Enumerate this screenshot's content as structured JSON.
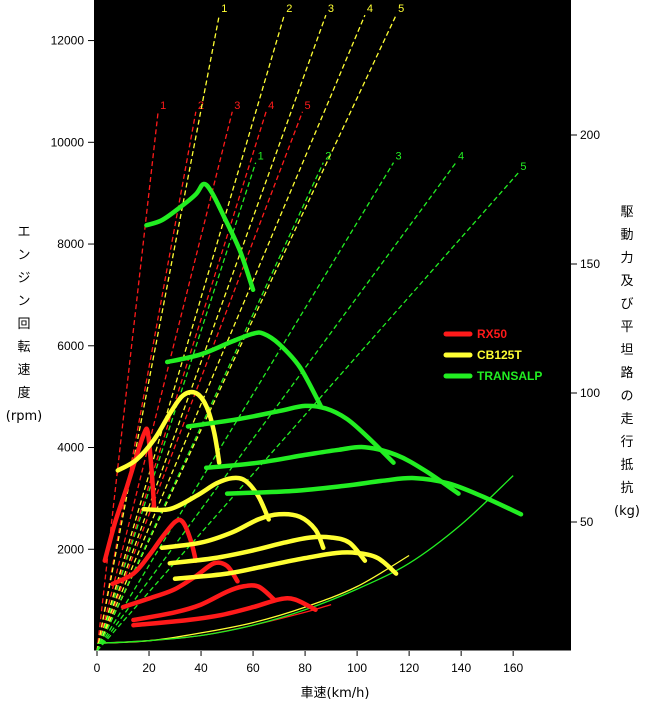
{
  "chart_data": {
    "type": "line",
    "xlabel": "車速(km/h)",
    "ylabel_left": [
      "エ",
      "ン",
      "ジ",
      "ン",
      "回",
      "転",
      "速",
      "度",
      "(rpm)"
    ],
    "ylabel_right": [
      "駆",
      "動",
      "力",
      "及",
      "び",
      "平",
      "坦",
      "路",
      "の",
      "走",
      "行",
      "抵",
      "抗",
      "(kg)"
    ],
    "xlim": [
      0,
      180
    ],
    "ylim_left": [
      0,
      12600
    ],
    "ylim_right": [
      0,
      252
    ],
    "x_ticks": [
      0,
      20,
      40,
      60,
      80,
      100,
      120,
      140,
      160
    ],
    "y_ticks_left": [
      2000,
      4000,
      6000,
      8000,
      10000,
      12000
    ],
    "y_ticks_right": [
      50,
      100,
      150,
      200
    ],
    "legend": [
      {
        "name": "RX50",
        "color": "#ff1a1a"
      },
      {
        "name": "CB125T",
        "color": "#ffff33"
      },
      {
        "name": "TRANSALP",
        "color": "#22ee22"
      }
    ],
    "gear_lines": [
      {
        "model": "RX50",
        "color": "#ff1a1a",
        "gear": "1",
        "end": [
          23.5,
          10600
        ]
      },
      {
        "model": "RX50",
        "color": "#ff1a1a",
        "gear": "2",
        "end": [
          38,
          10600
        ]
      },
      {
        "model": "RX50",
        "color": "#ff1a1a",
        "gear": "3",
        "end": [
          52,
          10600
        ]
      },
      {
        "model": "RX50",
        "color": "#ff1a1a",
        "gear": "4",
        "end": [
          65,
          10600
        ]
      },
      {
        "model": "RX50",
        "color": "#ff1a1a",
        "gear": "5",
        "end": [
          79,
          10600
        ]
      },
      {
        "model": "CB125T",
        "color": "#ffff33",
        "gear": "1",
        "end": [
          47,
          12500
        ]
      },
      {
        "model": "CB125T",
        "color": "#ffff33",
        "gear": "2",
        "end": [
          72,
          12500
        ]
      },
      {
        "model": "CB125T",
        "color": "#ffff33",
        "gear": "3",
        "end": [
          88,
          12500
        ]
      },
      {
        "model": "CB125T",
        "color": "#ffff33",
        "gear": "4",
        "end": [
          103,
          12500
        ]
      },
      {
        "model": "CB125T",
        "color": "#ffff33",
        "gear": "5",
        "end": [
          115,
          12500
        ]
      },
      {
        "model": "TRANSALP",
        "color": "#22ee22",
        "gear": "1",
        "end": [
          61,
          9600
        ]
      },
      {
        "model": "TRANSALP",
        "color": "#22ee22",
        "gear": "2",
        "end": [
          87,
          9600
        ]
      },
      {
        "model": "TRANSALP",
        "color": "#22ee22",
        "gear": "3",
        "end": [
          114,
          9600
        ]
      },
      {
        "model": "TRANSALP",
        "color": "#22ee22",
        "gear": "4",
        "end": [
          138,
          9600
        ]
      },
      {
        "model": "TRANSALP",
        "color": "#22ee22",
        "gear": "5",
        "end": [
          162,
          9400
        ]
      }
    ],
    "resistance_curves": [
      {
        "model": "RX50",
        "color": "#ff1a1a",
        "x": [
          0,
          20,
          40,
          60,
          80,
          90
        ],
        "y": [
          3,
          4,
          6,
          10,
          15,
          18
        ]
      },
      {
        "model": "CB125T",
        "color": "#ffff33",
        "x": [
          0,
          20,
          40,
          60,
          80,
          100,
          120
        ],
        "y": [
          3,
          4,
          7,
          11,
          17,
          25,
          37
        ]
      },
      {
        "model": "TRANSALP",
        "color": "#22ee22",
        "x": [
          0,
          20,
          40,
          60,
          80,
          100,
          120,
          140,
          160
        ],
        "y": [
          3,
          4,
          6,
          10,
          16,
          24,
          34,
          49,
          68
        ]
      }
    ],
    "traction_curves": [
      {
        "model": "RX50",
        "gear": "1",
        "color": "#ff1a1a",
        "x": [
          3,
          7,
          11,
          15,
          18,
          19.5,
          21,
          22
        ],
        "y": [
          35,
          50,
          62,
          75,
          84,
          85,
          70,
          55
        ]
      },
      {
        "model": "RX50",
        "gear": "2",
        "color": "#ff1a1a",
        "x": [
          6,
          14,
          20,
          25,
          30,
          33,
          36,
          38
        ],
        "y": [
          26,
          30,
          37,
          44,
          50,
          50,
          43,
          35
        ]
      },
      {
        "model": "RX50",
        "gear": "3",
        "color": "#ff1a1a",
        "x": [
          10,
          22,
          30,
          38,
          45,
          50,
          54
        ],
        "y": [
          17,
          21,
          24,
          29,
          34,
          33,
          27
        ]
      },
      {
        "model": "RX50",
        "gear": "4",
        "color": "#ff1a1a",
        "x": [
          14,
          30,
          40,
          50,
          56,
          62,
          68
        ],
        "y": [
          12,
          15,
          18,
          23,
          25,
          25,
          20
        ]
      },
      {
        "model": "RX50",
        "gear": "5",
        "color": "#ff1a1a",
        "x": [
          14,
          35,
          48,
          60,
          70,
          76,
          84
        ],
        "y": [
          10,
          12,
          14,
          17,
          20,
          20,
          16
        ]
      },
      {
        "model": "CB125T",
        "gear": "1",
        "color": "#ffff33",
        "x": [
          8,
          15,
          22,
          28,
          33,
          38,
          42,
          45,
          47
        ],
        "y": [
          70,
          74,
          82,
          92,
          99,
          100,
          95,
          85,
          73
        ]
      },
      {
        "model": "CB125T",
        "gear": "2",
        "color": "#ffff33",
        "x": [
          18,
          28,
          38,
          46,
          52,
          57,
          62,
          66
        ],
        "y": [
          55,
          55,
          60,
          65,
          67,
          66,
          60,
          51
        ]
      },
      {
        "model": "CB125T",
        "gear": "3",
        "color": "#ffff33",
        "x": [
          25,
          40,
          52,
          62,
          70,
          78,
          84,
          87
        ],
        "y": [
          40,
          42,
          46,
          51,
          53,
          52,
          47,
          40
        ]
      },
      {
        "model": "CB125T",
        "gear": "4",
        "color": "#ffff33",
        "x": [
          28,
          45,
          60,
          72,
          82,
          90,
          97,
          103
        ],
        "y": [
          34,
          36,
          39,
          42,
          44,
          44,
          42,
          35
        ]
      },
      {
        "model": "CB125T",
        "gear": "5",
        "color": "#ffff33",
        "x": [
          30,
          50,
          65,
          80,
          92,
          100,
          108,
          115
        ],
        "y": [
          28,
          30,
          33,
          36,
          38,
          38,
          36,
          30
        ]
      },
      {
        "model": "TRANSALP",
        "gear": "1",
        "color": "#22ee22",
        "x": [
          19,
          25,
          32,
          38,
          41,
          44,
          49,
          55,
          60
        ],
        "y": [
          165,
          167,
          172,
          177,
          181,
          178,
          168,
          155,
          140
        ]
      },
      {
        "model": "TRANSALP",
        "gear": "2",
        "color": "#22ee22",
        "x": [
          27,
          40,
          52,
          60,
          64,
          70,
          78,
          86
        ],
        "y": [
          112,
          115,
          120,
          123,
          123,
          119,
          110,
          95
        ]
      },
      {
        "model": "TRANSALP",
        "gear": "3",
        "color": "#22ee22",
        "x": [
          35,
          55,
          70,
          80,
          88,
          96,
          104,
          114
        ],
        "y": [
          87,
          90,
          93,
          95,
          94,
          90,
          83,
          73
        ]
      },
      {
        "model": "TRANSALP",
        "gear": "4",
        "color": "#22ee22",
        "x": [
          42,
          62,
          80,
          93,
          103,
          115,
          126,
          139
        ],
        "y": [
          71,
          73,
          76,
          78,
          79,
          76,
          70,
          61
        ]
      },
      {
        "model": "TRANSALP",
        "gear": "5",
        "color": "#22ee22",
        "x": [
          50,
          75,
          95,
          110,
          122,
          135,
          148,
          163
        ],
        "y": [
          61,
          62,
          64,
          66,
          67,
          65,
          60,
          53
        ]
      }
    ]
  }
}
